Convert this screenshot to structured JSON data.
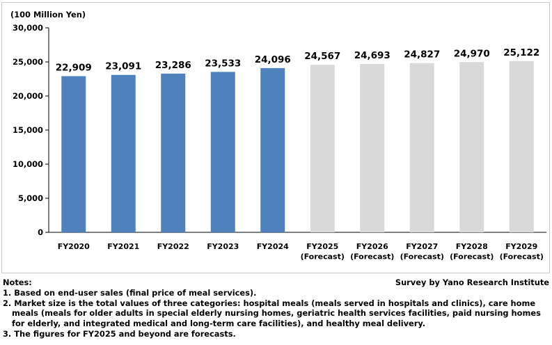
{
  "chart_data": {
    "type": "bar",
    "unit_label": "(100 Million Yen)",
    "categories": [
      [
        "FY2020"
      ],
      [
        "FY2021"
      ],
      [
        "FY2022"
      ],
      [
        "FY2023"
      ],
      [
        "FY2024"
      ],
      [
        "FY2025",
        "(Forecast)"
      ],
      [
        "FY2026",
        "(Forecast)"
      ],
      [
        "FY2027",
        "(Forecast)"
      ],
      [
        "FY2028",
        "(Forecast)"
      ],
      [
        "FY2029",
        "(Forecast)"
      ]
    ],
    "values": [
      22909,
      23091,
      23286,
      23533,
      24096,
      24567,
      24693,
      24827,
      24970,
      25122
    ],
    "value_labels": [
      "22,909",
      "23,091",
      "23,286",
      "23,533",
      "24,096",
      "24,567",
      "24,693",
      "24,827",
      "24,970",
      "25,122"
    ],
    "is_forecast": [
      false,
      false,
      false,
      false,
      false,
      true,
      true,
      true,
      true,
      true
    ],
    "ylim": [
      0,
      30000
    ],
    "y_ticks": [
      0,
      5000,
      10000,
      15000,
      20000,
      25000,
      30000
    ],
    "y_tick_labels": [
      "0",
      "5,000",
      "10,000",
      "15,000",
      "20,000",
      "25,000",
      "30,000"
    ],
    "grid": false,
    "colors": {
      "actual": "#4f81bd",
      "forecast": "#d9d9d9"
    }
  },
  "notes": {
    "heading": "Notes:",
    "items": [
      "1. Based on end-user sales (final price of meal services).",
      "2. Market size is the total values of three categories: hospital meals (meals served in hospitals and clinics), care home",
      "meals (meals for older adults in special elderly nursing homes, geriatric health services facilities, paid nursing homes",
      "for elderly, and integrated medical and long-term care facilities), and healthy meal delivery.",
      "3. The figures for FY2025 and beyond are forecasts."
    ],
    "source": "Survey by Yano Research Institute"
  }
}
